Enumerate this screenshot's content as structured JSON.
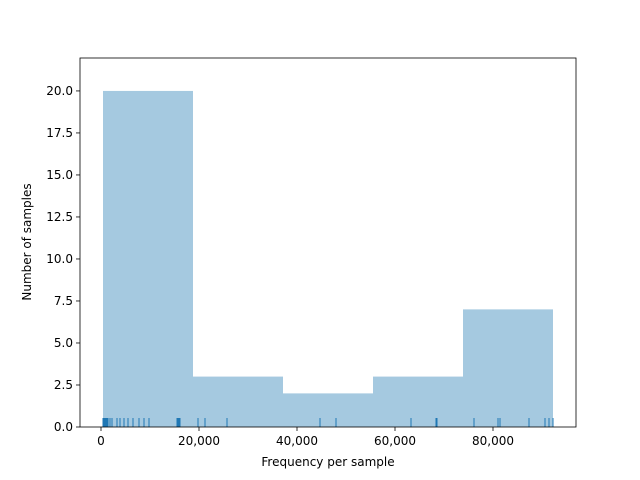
{
  "chart_data": {
    "type": "histogram",
    "xlabel": "Frequency per sample",
    "ylabel": "Number of samples",
    "bins": [
      408,
      18775,
      37143,
      55510,
      73878,
      92245
    ],
    "values": [
      20,
      3,
      2,
      3,
      7
    ],
    "color": "#a5c9e0",
    "rug": [
      408,
      612,
      816,
      1020,
      1224,
      1429,
      1837,
      2245,
      3265,
      3878,
      4694,
      5510,
      6531,
      7755,
      8776,
      9796,
      15510,
      15714,
      15918,
      16122,
      19796,
      21224,
      25714,
      44694,
      47959,
      63265,
      68367,
      68571,
      76122,
      81020,
      81429,
      87347,
      90612,
      91429,
      92245
    ],
    "rug_color": "#1f77b4",
    "xlim": [
      -4286,
      96939
    ],
    "ylim": [
      0,
      21.96
    ],
    "xticks": [
      0,
      {
        "value": 20000,
        "label": "20,000"
      },
      {
        "value": 40000,
        "label": "40,000"
      },
      {
        "value": 60000,
        "label": "60,000"
      },
      {
        "value": 80000,
        "label": "80,000"
      }
    ],
    "yticks": [
      {
        "value": 0,
        "label": "0.0"
      },
      {
        "value": 2.5,
        "label": "2.5"
      },
      {
        "value": 5,
        "label": "5.0"
      },
      {
        "value": 7.5,
        "label": "7.5"
      },
      {
        "value": 10,
        "label": "10.0"
      },
      {
        "value": 12.5,
        "label": "12.5"
      },
      {
        "value": 15,
        "label": "15.0"
      },
      {
        "value": 17.5,
        "label": "17.5"
      },
      {
        "value": 20,
        "label": "20.0"
      }
    ]
  }
}
